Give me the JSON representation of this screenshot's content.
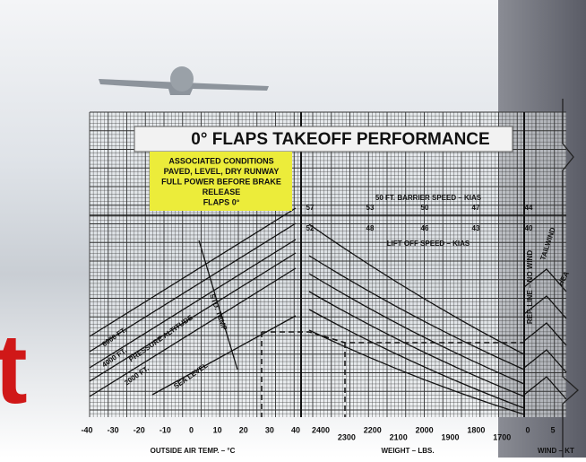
{
  "title": "0° FLAPS TAKEOFF PERFORMANCE",
  "conditions": [
    "ASSOCIATED CONDITIONS",
    "PAVED, LEVEL, DRY RUNWAY",
    "FULL POWER BEFORE BRAKE",
    "RELEASE",
    "FLAPS 0°"
  ],
  "barrier_speed": {
    "label": "50 FT. BARRIER SPEED – KIAS",
    "values": [
      57,
      53,
      50,
      47,
      44
    ]
  },
  "liftoff_speed": {
    "label": "LIFT OFF SPEED – KIAS",
    "values": [
      52,
      48,
      46,
      43,
      40
    ]
  },
  "temperature_axis": {
    "label": "OUTSIDE AIR TEMP. – °C",
    "ticks": [
      -40,
      -30,
      -20,
      -10,
      0,
      10,
      20,
      30,
      40
    ]
  },
  "weight_axis": {
    "label": "WEIGHT – LBS.",
    "ticks": [
      2400,
      2300,
      2200,
      2100,
      2000,
      1900,
      1800,
      1700
    ]
  },
  "wind_axis": {
    "label": "WIND – KT",
    "ticks": [
      0,
      5
    ]
  },
  "chart_labels": [
    "6000 FT.",
    "4000 FT.",
    "PRESSURE ALTITUDE",
    "2000 FT.",
    "SEA LEVEL",
    "STD. TEMP",
    "REF. LINE – NO WIND",
    "TAILWIND",
    "HEA"
  ],
  "brand_fragment": "t"
}
